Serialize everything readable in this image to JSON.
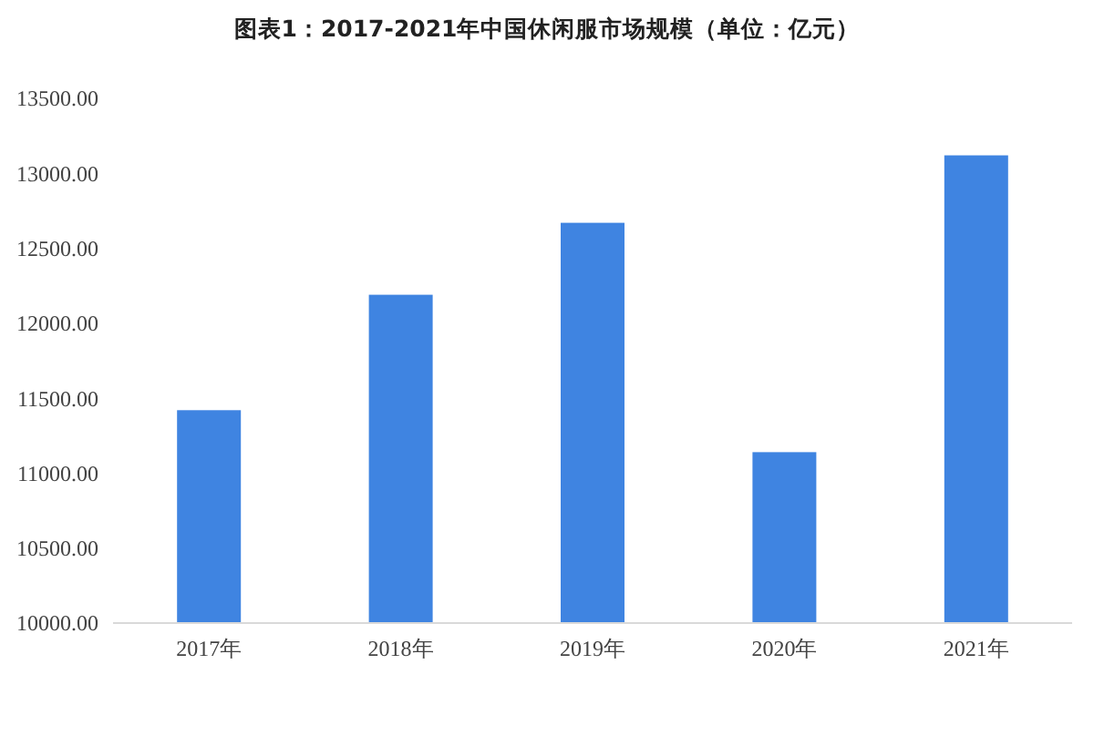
{
  "chart_data": {
    "type": "bar",
    "title": "图表1：2017-2021年中国休闲服市场规模（单位：亿元）",
    "categories": [
      "2017年",
      "2018年",
      "2019年",
      "2020年",
      "2021年"
    ],
    "values": [
      11420,
      12190,
      12670,
      11140,
      13120
    ],
    "color": "#3f84e1",
    "ylim": [
      10000,
      13500
    ],
    "yticks": [
      {
        "value": 10000,
        "label": "10000.00"
      },
      {
        "value": 10500,
        "label": "10500.00"
      },
      {
        "value": 11000,
        "label": "11000.00"
      },
      {
        "value": 11500,
        "label": "11500.00"
      },
      {
        "value": 12000,
        "label": "12000.00"
      },
      {
        "value": 12500,
        "label": "12500.00"
      },
      {
        "value": 13000,
        "label": "13000.00"
      },
      {
        "value": 13500,
        "label": "13500.00"
      }
    ],
    "grid": false
  }
}
